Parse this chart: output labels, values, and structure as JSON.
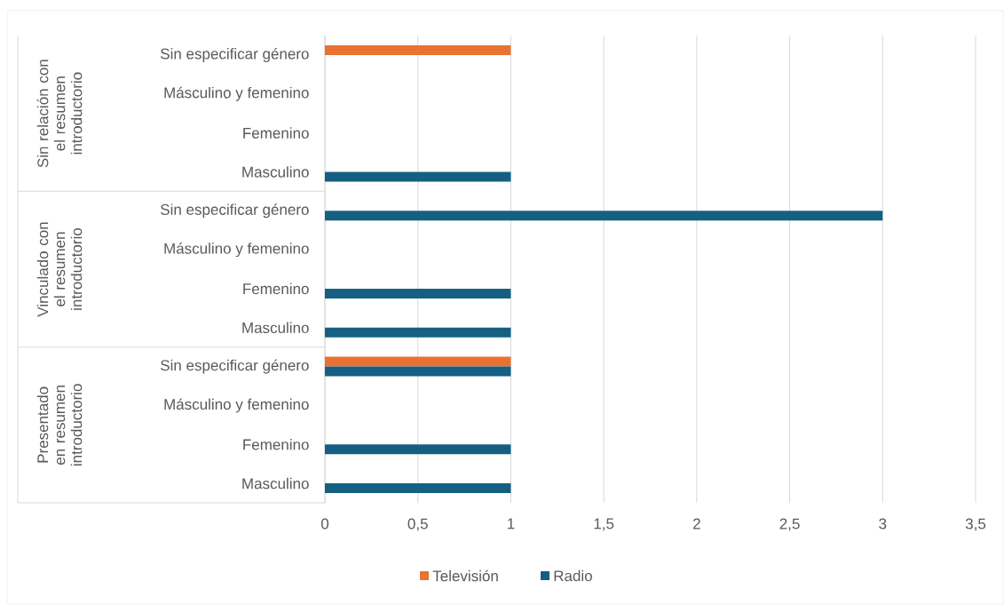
{
  "chart_data": {
    "type": "bar",
    "orientation": "horizontal",
    "categories": [
      "Sin especificar género",
      "Másculino y femenino",
      "Femenino",
      "Masculino",
      "Sin especificar género",
      "Másculino y femenino",
      "Femenino",
      "Masculino",
      "Sin especificar género",
      "Másculino y femenino",
      "Femenino",
      "Masculino"
    ],
    "annotations": [
      "Sin relación con el resumen introductorio",
      "Vinculado con el resumen introductorio",
      "Presentado en resumen introductorio"
    ],
    "series": [
      {
        "name": "Televisión",
        "color": "#e97132",
        "values": [
          1,
          null,
          null,
          null,
          null,
          null,
          null,
          null,
          1,
          null,
          null,
          null
        ]
      },
      {
        "name": "Radio",
        "color": "#156082",
        "values": [
          null,
          null,
          null,
          1,
          3,
          null,
          1,
          1,
          1,
          null,
          1,
          1
        ]
      }
    ],
    "xlim": [
      0,
      3.5
    ],
    "xticks": [
      0,
      {
        "value": 0.5,
        "label": "0,5"
      },
      1,
      {
        "value": 1.5,
        "label": "1,5"
      },
      2,
      {
        "value": 2.5,
        "label": "2,5"
      },
      3,
      {
        "value": 3.5,
        "label": "3,5"
      }
    ],
    "grid": "x",
    "legend": "bottom"
  }
}
